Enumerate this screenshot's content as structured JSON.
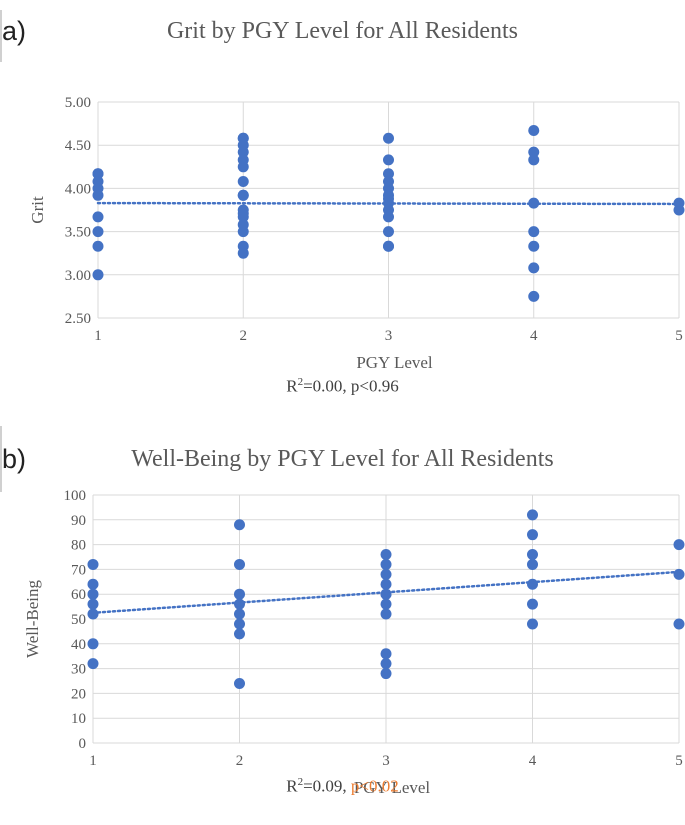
{
  "chart_data": [
    {
      "panel_label": "a)",
      "type": "scatter",
      "title": "Grit by PGY Level for All Residents",
      "xlabel": "PGY Level",
      "ylabel": "Grit",
      "xlim": [
        1,
        5
      ],
      "ylim": [
        2.5,
        5.0
      ],
      "x_ticks": [
        "1",
        "2",
        "3",
        "4",
        "5"
      ],
      "y_ticks": [
        "2.50",
        "3.00",
        "3.50",
        "4.00",
        "4.50",
        "5.00"
      ],
      "grid": true,
      "stats": {
        "r2_text": "=0.00, p<0.96",
        "r2_symbol": "R",
        "r2_sup": "2",
        "p_text": ""
      },
      "trendline": {
        "x": [
          1,
          5
        ],
        "y": [
          3.83,
          3.82
        ]
      },
      "x": [
        1,
        1,
        1,
        1,
        1,
        1,
        1,
        1,
        1,
        2,
        2,
        2,
        2,
        2,
        2,
        2,
        2,
        2,
        2,
        2,
        2,
        2,
        2,
        2,
        2,
        3,
        3,
        3,
        3,
        3,
        3,
        3,
        3,
        3,
        3,
        3,
        3,
        3,
        4,
        4,
        4,
        4,
        4,
        4,
        4,
        4,
        5,
        5
      ],
      "y": [
        4.17,
        4.08,
        4.0,
        3.92,
        3.67,
        3.5,
        3.33,
        3.0,
        4.17,
        4.58,
        4.5,
        4.42,
        4.33,
        4.25,
        4.08,
        3.92,
        3.75,
        3.67,
        3.58,
        3.5,
        3.33,
        3.25,
        3.92,
        3.71,
        4.58,
        4.58,
        4.33,
        4.17,
        4.08,
        4.0,
        3.92,
        3.83,
        3.75,
        3.67,
        3.5,
        3.33,
        3.88,
        3.33,
        4.67,
        4.42,
        4.33,
        3.83,
        3.5,
        3.33,
        3.08,
        2.75,
        3.83,
        3.75
      ]
    },
    {
      "panel_label": "b)",
      "type": "scatter",
      "title": "Well-Being by PGY Level for All Residents",
      "xlabel": "PGY Level",
      "ylabel": "Well-Being",
      "xlim": [
        1,
        5
      ],
      "ylim": [
        0,
        100
      ],
      "x_ticks": [
        "1",
        "2",
        "3",
        "4",
        "5"
      ],
      "y_ticks": [
        "0",
        "10",
        "20",
        "30",
        "40",
        "50",
        "60",
        "70",
        "80",
        "90",
        "100"
      ],
      "grid": true,
      "stats": {
        "r2_text": "=0.09, ",
        "r2_symbol": "R",
        "r2_sup": "2",
        "p_text": "p<0.02"
      },
      "trendline": {
        "x": [
          1,
          5
        ],
        "y": [
          52.5,
          69
        ]
      },
      "x": [
        1,
        1,
        1,
        1,
        1,
        1,
        1,
        2,
        2,
        2,
        2,
        2,
        2,
        2,
        2,
        3,
        3,
        3,
        3,
        3,
        3,
        3,
        3,
        3,
        3,
        3,
        4,
        4,
        4,
        4,
        4,
        4,
        4,
        5,
        5,
        5
      ],
      "y": [
        72,
        64,
        60,
        56,
        52,
        40,
        32,
        88,
        72,
        60,
        56,
        52,
        48,
        44,
        24,
        76,
        72,
        68,
        64,
        60,
        56,
        52,
        36,
        32,
        28,
        60,
        92,
        84,
        76,
        72,
        64,
        56,
        48,
        80,
        68,
        48
      ]
    }
  ],
  "colors": {
    "marker": "#4472c4",
    "trendline": "#4472c4",
    "grid": "#d9d9d9",
    "significant": "#ed7d31"
  }
}
